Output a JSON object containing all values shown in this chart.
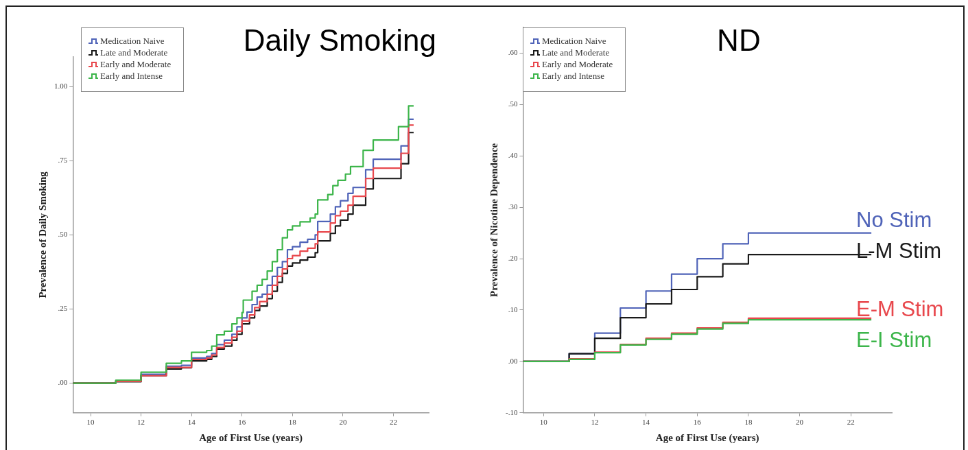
{
  "chart_data": [
    {
      "type": "step",
      "title": "Daily Smoking",
      "xlabel": "Age of First Use (years)",
      "ylabel": "Prevalence of Daily Smoking",
      "legend": "top left",
      "grid": false,
      "xlim": [
        9.3,
        23.4
      ],
      "xticks": [
        10,
        12,
        14,
        16,
        18,
        20,
        22
      ],
      "ylim": [
        -0.1,
        1.1
      ],
      "yticks": [
        {
          "value": 0,
          "label": ".00"
        },
        {
          "value": 0.25,
          "label": ".25"
        },
        {
          "value": 0.5,
          "label": ".50"
        },
        {
          "value": 0.75,
          "label": ".75"
        },
        {
          "value": 1,
          "label": "1.00"
        }
      ],
      "series": [
        {
          "name": "Medication Naive",
          "color": "#4f63b8",
          "x": [
            9.3,
            11,
            12,
            13,
            13.6,
            14,
            14.6,
            14.8,
            15,
            15.3,
            15.6,
            15.8,
            16,
            16.2,
            16.4,
            16.6,
            16.8,
            17,
            17.2,
            17.4,
            17.6,
            17.8,
            18,
            18.3,
            18.6,
            18.9,
            19,
            19.5,
            19.7,
            19.9,
            20.2,
            20.4,
            20.9,
            21.2,
            22.3,
            22.6,
            22.8
          ],
          "values": [
            0,
            0.008,
            0.03,
            0.057,
            0.06,
            0.085,
            0.09,
            0.1,
            0.13,
            0.145,
            0.165,
            0.19,
            0.22,
            0.24,
            0.265,
            0.29,
            0.3,
            0.33,
            0.36,
            0.39,
            0.41,
            0.45,
            0.46,
            0.475,
            0.485,
            0.5,
            0.545,
            0.57,
            0.595,
            0.615,
            0.64,
            0.66,
            0.72,
            0.755,
            0.8,
            0.89,
            0.89
          ]
        },
        {
          "name": "Late and Moderate",
          "color": "#1a1a1a",
          "x": [
            9.3,
            11,
            12,
            13,
            13.6,
            14,
            14.6,
            14.8,
            15,
            15.3,
            15.6,
            15.8,
            16,
            16.3,
            16.5,
            16.7,
            17,
            17.2,
            17.4,
            17.6,
            17.8,
            18,
            18.3,
            18.6,
            18.9,
            19,
            19.5,
            19.7,
            19.9,
            20.2,
            20.4,
            20.9,
            21.2,
            22.3,
            22.6,
            22.8
          ],
          "values": [
            0,
            0.005,
            0.025,
            0.048,
            0.052,
            0.075,
            0.08,
            0.09,
            0.115,
            0.125,
            0.145,
            0.165,
            0.2,
            0.22,
            0.245,
            0.26,
            0.285,
            0.31,
            0.34,
            0.37,
            0.395,
            0.405,
            0.415,
            0.425,
            0.44,
            0.48,
            0.505,
            0.53,
            0.55,
            0.57,
            0.6,
            0.655,
            0.69,
            0.74,
            0.845,
            0.845
          ]
        },
        {
          "name": "Early and Moderate",
          "color": "#e8474c",
          "x": [
            9.3,
            11,
            12,
            13,
            14,
            14.6,
            14.8,
            15,
            15.3,
            15.6,
            15.8,
            16,
            16.3,
            16.5,
            16.7,
            17,
            17.2,
            17.4,
            17.6,
            17.8,
            18,
            18.3,
            18.6,
            18.9,
            19,
            19.5,
            19.7,
            19.9,
            20.2,
            20.4,
            20.9,
            21.2,
            22.3,
            22.6,
            22.8
          ],
          "values": [
            0,
            0.006,
            0.025,
            0.053,
            0.08,
            0.085,
            0.095,
            0.12,
            0.135,
            0.155,
            0.175,
            0.21,
            0.23,
            0.255,
            0.275,
            0.3,
            0.33,
            0.36,
            0.385,
            0.42,
            0.43,
            0.445,
            0.455,
            0.47,
            0.51,
            0.54,
            0.565,
            0.58,
            0.6,
            0.63,
            0.69,
            0.725,
            0.775,
            0.87,
            0.87
          ]
        },
        {
          "name": "Early and Intense",
          "color": "#3cb54a",
          "x": [
            9.3,
            11,
            12,
            13,
            13.6,
            14,
            14.6,
            14.8,
            15,
            15.3,
            15.6,
            15.8,
            16,
            16.05,
            16.4,
            16.6,
            16.8,
            17,
            17.2,
            17.4,
            17.6,
            17.8,
            18,
            18.3,
            18.7,
            18.9,
            19,
            19.4,
            19.6,
            19.8,
            20.1,
            20.3,
            20.8,
            21.2,
            22.2,
            22.6,
            22.8
          ],
          "values": [
            0,
            0.01,
            0.037,
            0.067,
            0.075,
            0.104,
            0.11,
            0.125,
            0.163,
            0.175,
            0.2,
            0.22,
            0.238,
            0.28,
            0.31,
            0.33,
            0.35,
            0.378,
            0.41,
            0.45,
            0.49,
            0.517,
            0.53,
            0.544,
            0.557,
            0.57,
            0.618,
            0.636,
            0.666,
            0.684,
            0.705,
            0.73,
            0.785,
            0.82,
            0.865,
            0.935,
            0.935
          ]
        }
      ]
    },
    {
      "type": "step",
      "title": "ND",
      "xlabel": "Age of First Use (years)",
      "ylabel": "Prevalence of Nicotine Dependence",
      "legend": "top left",
      "grid": false,
      "xlim": [
        9.2,
        23.6
      ],
      "xticks": [
        10,
        12,
        14,
        16,
        18,
        20,
        22
      ],
      "ylim": [
        -0.1,
        0.65
      ],
      "yticks": [
        {
          "value": -0.1,
          "label": "-.10"
        },
        {
          "value": 0,
          "label": ".00"
        },
        {
          "value": 0.1,
          "label": ".10"
        },
        {
          "value": 0.2,
          "label": ".20"
        },
        {
          "value": 0.3,
          "label": ".30"
        },
        {
          "value": 0.4,
          "label": ".40"
        },
        {
          "value": 0.5,
          "label": ".50"
        },
        {
          "value": 0.6,
          "label": ".60"
        }
      ],
      "annotations": [
        "No Stim",
        "L-M Stim",
        "E-M Stim",
        "E-I Stim"
      ],
      "series": [
        {
          "name": "Medication Naive",
          "color": "#4f63b8",
          "x": [
            9.2,
            11,
            12,
            13,
            14,
            15,
            16,
            17,
            18,
            22.8
          ],
          "values": [
            0,
            0.015,
            0.055,
            0.104,
            0.137,
            0.17,
            0.2,
            0.229,
            0.25,
            0.25
          ]
        },
        {
          "name": "Late and Moderate",
          "color": "#1a1a1a",
          "x": [
            9.2,
            11,
            12,
            13,
            14,
            15,
            16,
            17,
            18,
            22.8
          ],
          "values": [
            0,
            0.015,
            0.045,
            0.085,
            0.112,
            0.14,
            0.165,
            0.19,
            0.208,
            0.208
          ]
        },
        {
          "name": "Early and Moderate",
          "color": "#e8474c",
          "x": [
            9.2,
            11,
            12,
            13,
            14,
            15,
            16,
            17,
            18,
            22.8
          ],
          "values": [
            0,
            0.005,
            0.018,
            0.033,
            0.045,
            0.055,
            0.065,
            0.076,
            0.084,
            0.084
          ]
        },
        {
          "name": "Early and Intense",
          "color": "#3cb54a",
          "x": [
            9.2,
            11,
            12,
            13,
            14,
            15,
            16,
            17,
            18,
            22.8
          ],
          "values": [
            0,
            0.004,
            0.017,
            0.032,
            0.043,
            0.053,
            0.063,
            0.074,
            0.081,
            0.081
          ]
        }
      ]
    }
  ]
}
